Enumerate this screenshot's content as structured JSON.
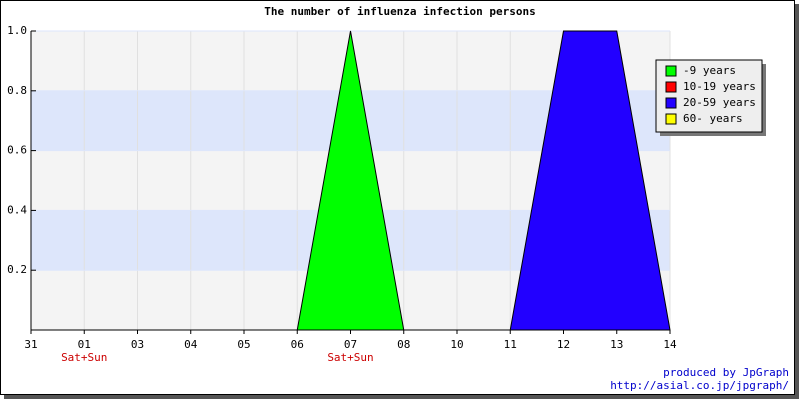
{
  "chart_data": {
    "type": "area",
    "title": "The number of influenza infection persons",
    "categories": [
      "31",
      "01",
      "03",
      "04",
      "05",
      "06",
      "07",
      "08",
      "10",
      "11",
      "12",
      "13",
      "14"
    ],
    "sublabels": [
      null,
      "Sat+Sun",
      null,
      null,
      null,
      null,
      "Sat+Sun",
      null,
      null,
      null,
      null,
      null,
      null
    ],
    "series": [
      {
        "name": "-9 years",
        "color": "#00ff00",
        "values": [
          0,
          0,
          0,
          0,
          0,
          0,
          1,
          0,
          0,
          0,
          0,
          0,
          0
        ]
      },
      {
        "name": "10-19 years",
        "color": "#ff0000",
        "values": [
          0,
          0,
          0,
          0,
          0,
          0,
          0,
          0,
          0,
          0,
          0,
          0,
          0
        ]
      },
      {
        "name": "20-59 years",
        "color": "#2200ff",
        "values": [
          0,
          0,
          0,
          0,
          0,
          0,
          0,
          0,
          0,
          0,
          1,
          1,
          0
        ]
      },
      {
        "name": "60- years",
        "color": "#ffff00",
        "values": [
          0,
          0,
          0,
          0,
          0,
          0,
          0,
          0,
          0,
          0,
          0,
          0,
          0
        ]
      }
    ],
    "ylim": [
      0,
      1
    ],
    "yticks": [
      0.2,
      0.4,
      0.6,
      0.8,
      {
        "value": 1,
        "label": "1.0"
      }
    ],
    "grid": true,
    "legend": "top-right",
    "credit": "produced by JpGraph",
    "credit_url": "http://asial.co.jp/jpgraph/"
  }
}
